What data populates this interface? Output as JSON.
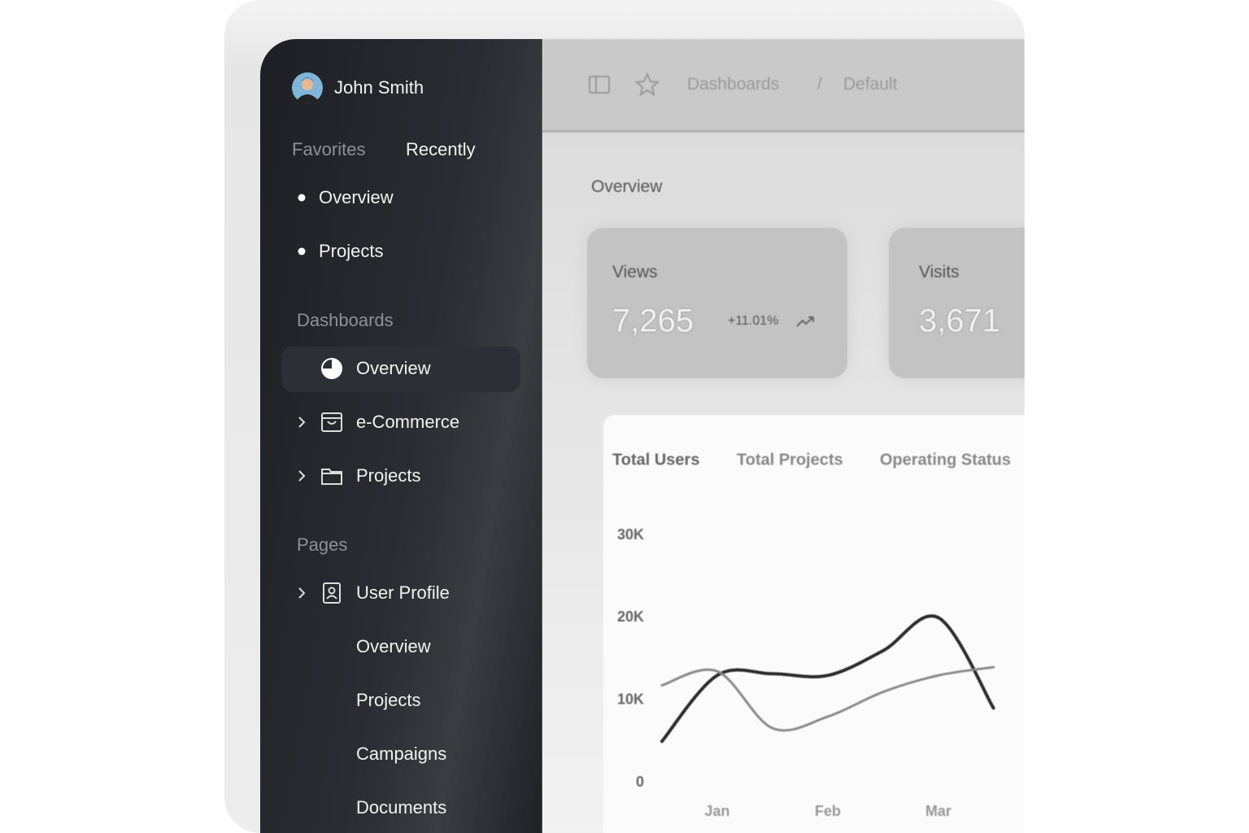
{
  "sidebar": {
    "user": "John Smith",
    "tabs": [
      "Favorites",
      "Recently"
    ],
    "favorites": [
      "Overview",
      "Projects"
    ],
    "sections": [
      {
        "title": "Dashboards",
        "items": [
          "Overview",
          "e-Commerce",
          "Projects"
        ]
      },
      {
        "title": "Pages",
        "items": [
          "User Profile",
          "Overview",
          "Projects",
          "Campaigns",
          "Documents"
        ]
      }
    ]
  },
  "header": {
    "breadcrumb": [
      "Dashboards",
      "Default"
    ],
    "separator": "/"
  },
  "overview": {
    "title": "Overview",
    "cards": [
      {
        "label": "Views",
        "value": "7,265",
        "change": "+11.01%"
      },
      {
        "label": "Visits",
        "value": "3,671"
      }
    ]
  },
  "chart_tabs": [
    "Total Users",
    "Total Projects",
    "Operating Status"
  ],
  "chart_data": {
    "type": "line",
    "categories": [
      null,
      "Jan",
      null,
      "Feb",
      null,
      "Mar",
      null
    ],
    "series": [
      {
        "color": "#2a2a2a",
        "values": [
          5000,
          13000,
          13200,
          13000,
          16000,
          20000,
          9000
        ]
      },
      {
        "color": "#8a8a8a",
        "values": [
          11800,
          13500,
          6600,
          8000,
          11000,
          13000,
          14000
        ]
      }
    ],
    "ylim": [
      0,
      30000
    ],
    "yticks": [
      0,
      {
        "value": 10000,
        "label": "10K"
      },
      {
        "value": 20000,
        "label": "20K"
      },
      {
        "value": 30000,
        "label": "30K"
      }
    ]
  }
}
